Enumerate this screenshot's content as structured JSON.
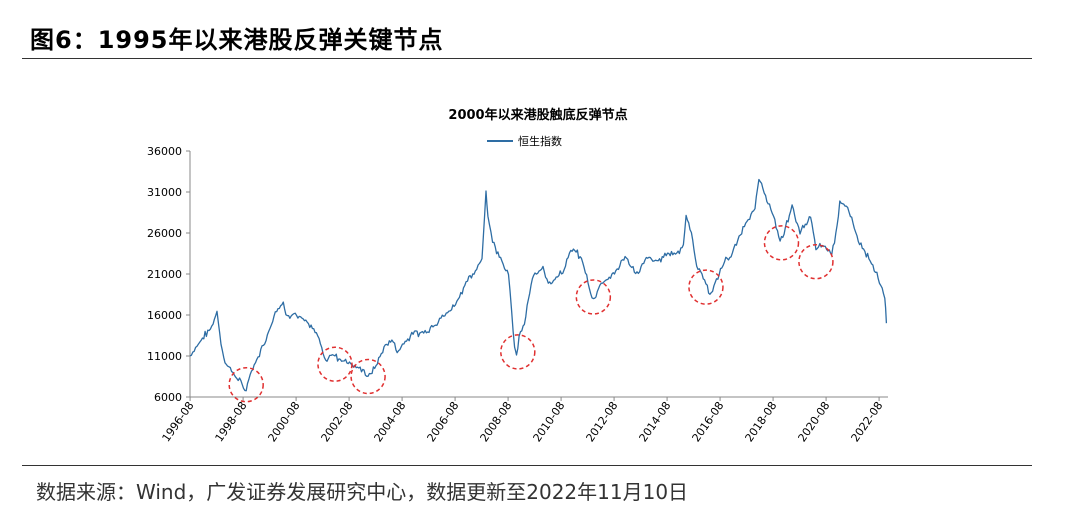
{
  "figure": {
    "title": "图6：1995年以来港股反弹关键节点",
    "source": "数据来源：Wind，广发证券发展研究中心，数据更新至2022年11月10日"
  },
  "colors": {
    "line": "#2e6da4",
    "circle": "#e03030",
    "axis": "#888888",
    "text": "#000000"
  },
  "chart_data": {
    "type": "line",
    "title": "2000年以来港股触底反弹节点",
    "legend": "top-center",
    "grid": false,
    "ylim": [
      6000,
      36000
    ],
    "yticks": [
      6000,
      11000,
      16000,
      21000,
      26000,
      31000,
      36000
    ],
    "xlim": [
      1996.58,
      2022.92
    ],
    "xtick_labels": [
      "1996-08",
      "1998-08",
      "2000-08",
      "2002-08",
      "2004-08",
      "2006-08",
      "2008-08",
      "2010-08",
      "2012-08",
      "2014-08",
      "2016-08",
      "2018-08",
      "2020-08",
      "2022-08"
    ],
    "series": [
      {
        "name": "恒生指数",
        "x": [
          1996.58,
          1997.0,
          1997.4,
          1997.6,
          1997.75,
          1997.85,
          1998.0,
          1998.3,
          1998.6,
          1998.7,
          1998.85,
          1999.1,
          1999.5,
          1999.8,
          2000.1,
          2000.2,
          2000.5,
          2000.8,
          2001.0,
          2001.4,
          2001.7,
          2001.85,
          2002.0,
          2002.3,
          2002.6,
          2002.9,
          2003.1,
          2003.3,
          2003.6,
          2003.9,
          2004.2,
          2004.4,
          2004.7,
          2005.0,
          2005.4,
          2005.8,
          2006.0,
          2006.4,
          2006.7,
          2007.0,
          2007.3,
          2007.6,
          2007.75,
          2007.82,
          2008.0,
          2008.3,
          2008.6,
          2008.83,
          2008.9,
          2009.0,
          2009.2,
          2009.5,
          2009.7,
          2009.9,
          2010.1,
          2010.4,
          2010.7,
          2010.9,
          2011.1,
          2011.4,
          2011.75,
          2011.85,
          2012.1,
          2012.4,
          2012.7,
          2013.0,
          2013.2,
          2013.5,
          2013.8,
          2014.2,
          2014.6,
          2014.9,
          2015.2,
          2015.3,
          2015.5,
          2015.7,
          2015.9,
          2016.1,
          2016.2,
          2016.5,
          2016.8,
          2017.0,
          2017.3,
          2017.6,
          2017.9,
          2018.05,
          2018.3,
          2018.6,
          2018.85,
          2019.0,
          2019.3,
          2019.6,
          2019.8,
          2020.0,
          2020.2,
          2020.5,
          2020.8,
          2021.0,
          2021.1,
          2021.4,
          2021.7,
          2022.0,
          2022.2,
          2022.4,
          2022.6,
          2022.8,
          2022.86
        ],
        "values": [
          11000,
          13000,
          14500,
          16500,
          12500,
          10800,
          9800,
          8500,
          7200,
          6800,
          8800,
          10500,
          13500,
          16500,
          17500,
          16000,
          16200,
          15500,
          15000,
          13500,
          10500,
          11000,
          11200,
          10500,
          10200,
          9500,
          9300,
          8500,
          9800,
          12000,
          13000,
          11500,
          12800,
          13800,
          13900,
          14800,
          15500,
          16500,
          18000,
          20000,
          21000,
          23000,
          31200,
          28000,
          25000,
          23000,
          21000,
          12000,
          11000,
          13500,
          15000,
          20500,
          21000,
          22000,
          20000,
          20500,
          21500,
          23500,
          24000,
          22500,
          18000,
          18000,
          20000,
          20500,
          21500,
          23000,
          22000,
          21000,
          23000,
          22500,
          23500,
          23500,
          24500,
          28000,
          26000,
          22000,
          21000,
          19500,
          18500,
          20500,
          23000,
          23000,
          25500,
          27500,
          29000,
          32500,
          30500,
          28000,
          25000,
          26000,
          29500,
          26000,
          27000,
          28000,
          24000,
          24500,
          23500,
          27000,
          30000,
          29000,
          26000,
          24000,
          23000,
          21500,
          20000,
          18000,
          15000
        ]
      }
    ],
    "annotations": [
      {
        "type": "circle",
        "x": 1998.7,
        "y": 7500
      },
      {
        "type": "circle",
        "x": 2002.05,
        "y": 10000
      },
      {
        "type": "circle",
        "x": 2003.3,
        "y": 8500
      },
      {
        "type": "circle",
        "x": 2008.95,
        "y": 11500
      },
      {
        "type": "circle",
        "x": 2011.8,
        "y": 18200
      },
      {
        "type": "circle",
        "x": 2016.05,
        "y": 19400
      },
      {
        "type": "circle",
        "x": 2018.9,
        "y": 24800
      },
      {
        "type": "circle",
        "x": 2020.2,
        "y": 22500
      }
    ]
  }
}
